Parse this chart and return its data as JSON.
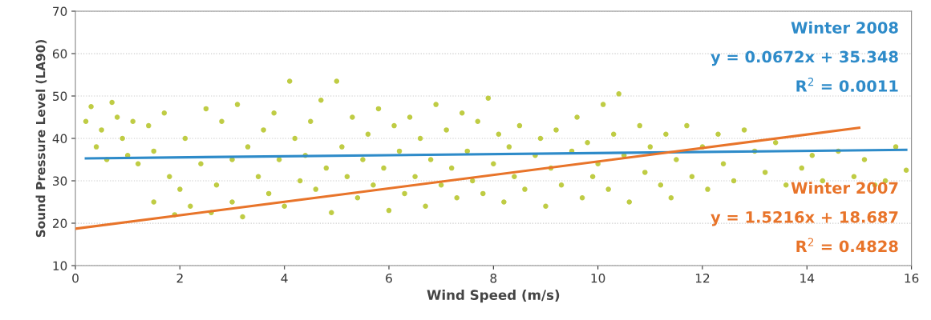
{
  "chart_data": {
    "type": "scatter",
    "xlabel": "Wind Speed (m/s)",
    "ylabel": "Sound Pressure Level (LA90)",
    "xlim": [
      0,
      16
    ],
    "xticks": [
      0,
      2,
      4,
      6,
      8,
      10,
      12,
      14,
      16
    ],
    "ylim": [
      10,
      70
    ],
    "yticks": [
      10,
      20,
      30,
      40,
      50,
      60,
      70
    ],
    "grid": "y",
    "annotations": [
      "y = 0.0672x + 35.348",
      "R$^{2}$ = 0.0011",
      "y = 1.5216x + 18.687",
      "R$^{2}$ = 0.4828"
    ],
    "series": [
      {
        "marker": "circle",
        "color": "#bfcc44",
        "x": [
          0.2,
          0.3,
          0.4,
          0.5,
          0.6,
          0.7,
          0.8,
          0.9,
          1.0,
          1.1,
          1.2,
          1.4,
          1.5,
          1.5,
          1.7,
          1.8,
          1.9,
          2.0,
          2.1,
          2.2,
          2.4,
          2.5,
          2.6,
          2.7,
          2.8,
          3.0,
          3.0,
          3.1,
          3.2,
          3.3,
          3.5,
          3.6,
          3.7,
          3.8,
          3.9,
          4.0,
          4.1,
          4.2,
          4.3,
          4.4,
          4.5,
          4.6,
          4.7,
          4.8,
          4.9,
          5.0,
          5.1,
          5.2,
          5.3,
          5.4,
          5.5,
          5.6,
          5.7,
          5.8,
          5.9,
          6.0,
          6.1,
          6.2,
          6.3,
          6.4,
          6.5,
          6.6,
          6.7,
          6.8,
          6.9,
          7.0,
          7.1,
          7.2,
          7.3,
          7.4,
          7.5,
          7.6,
          7.7,
          7.8,
          7.9,
          8.0,
          8.1,
          8.2,
          8.3,
          8.4,
          8.5,
          8.6,
          8.8,
          8.9,
          9.0,
          9.1,
          9.2,
          9.3,
          9.5,
          9.6,
          9.7,
          9.8,
          9.9,
          10.0,
          10.1,
          10.2,
          10.3,
          10.4,
          10.5,
          10.6,
          10.8,
          10.9,
          11.0,
          11.2,
          11.3,
          11.4,
          11.5,
          11.7,
          11.8,
          12.0,
          12.1,
          12.3,
          12.4,
          12.6,
          12.8,
          13.0,
          13.2,
          13.4,
          13.6,
          13.9,
          14.1,
          14.3,
          14.6,
          14.9,
          15.1,
          15.3,
          15.5,
          15.7,
          15.9
        ],
        "values": [
          44,
          47.5,
          38,
          42,
          35,
          48.5,
          45,
          40,
          36,
          44,
          34,
          43,
          37,
          25,
          46,
          31,
          22,
          28,
          40,
          24,
          34,
          47,
          22.5,
          29,
          44,
          35,
          25,
          48,
          21.5,
          38,
          31,
          42,
          27,
          46,
          35,
          24,
          53.5,
          40,
          30,
          36,
          44,
          28,
          49,
          33,
          22.5,
          53.5,
          38,
          31,
          45,
          26,
          35,
          41,
          29,
          47,
          33,
          23,
          43,
          37,
          27,
          45,
          31,
          40,
          24,
          35,
          48,
          29,
          42,
          33,
          26,
          46,
          37,
          30,
          44,
          27,
          49.5,
          34,
          41,
          25,
          38,
          31,
          43,
          28,
          36,
          40,
          24,
          33,
          42,
          29,
          37,
          45,
          26,
          39,
          31,
          34,
          48,
          28,
          41,
          50.5,
          36,
          25,
          43,
          32,
          38,
          29,
          41,
          26,
          35,
          43,
          31,
          38,
          28,
          41,
          34,
          30,
          42,
          37,
          32,
          39,
          29,
          33,
          36,
          30,
          37,
          31,
          35,
          29,
          30,
          38,
          32.5
        ]
      },
      {
        "type": "line",
        "name": "Winter 2008",
        "color": "#2e8bc9",
        "x": [
          0.2,
          15.9
        ],
        "values": [
          35.3,
          37.3
        ]
      },
      {
        "type": "line",
        "name": "Winter 2007",
        "color": "#e8742a",
        "x": [
          0,
          15
        ],
        "values": [
          18.7,
          42.5
        ]
      }
    ]
  }
}
